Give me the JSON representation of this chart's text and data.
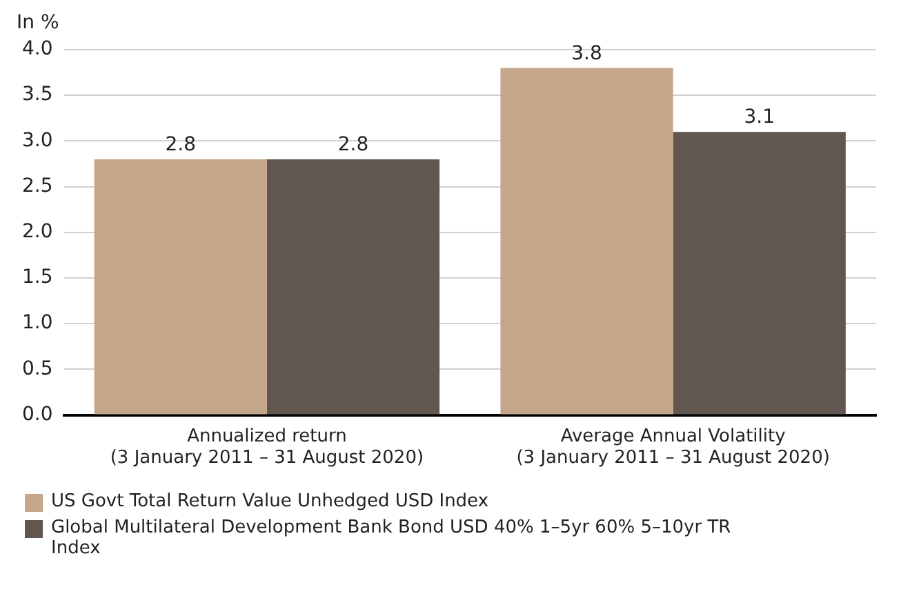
{
  "chart_data": {
    "type": "bar",
    "ylabel": "In %",
    "categories": [
      "Annualized return\n(3 January 2011 – 31 August 2020)",
      "Average Annual Volatility\n(3 January 2011 – 31 August 2020)"
    ],
    "series": [
      {
        "name": "US Govt Total Return Value Unhedged USD Index",
        "color": "#c4a68b",
        "values": [
          2.8,
          3.8
        ]
      },
      {
        "name": "Global Multilateral Development Bank Bond USD 40% 1–5yr 60% 5–10yr TR Index",
        "color": "#625750",
        "values": [
          2.8,
          3.1
        ]
      }
    ],
    "ylim": [
      0,
      4
    ],
    "yticks": [
      {
        "value": 0,
        "label": "0.0"
      },
      {
        "value": 0.5,
        "label": "0.5"
      },
      {
        "value": 1,
        "label": "1.0"
      },
      {
        "value": 1.5,
        "label": "1.5"
      },
      {
        "value": 2,
        "label": "2.0"
      },
      {
        "value": 2.5,
        "label": "2.5"
      },
      {
        "value": 3,
        "label": "3.0"
      },
      {
        "value": 3.5,
        "label": "3.5"
      },
      {
        "value": 4,
        "label": "4.0"
      }
    ],
    "grid": "y",
    "legend": "bottom",
    "data_labels": true
  }
}
